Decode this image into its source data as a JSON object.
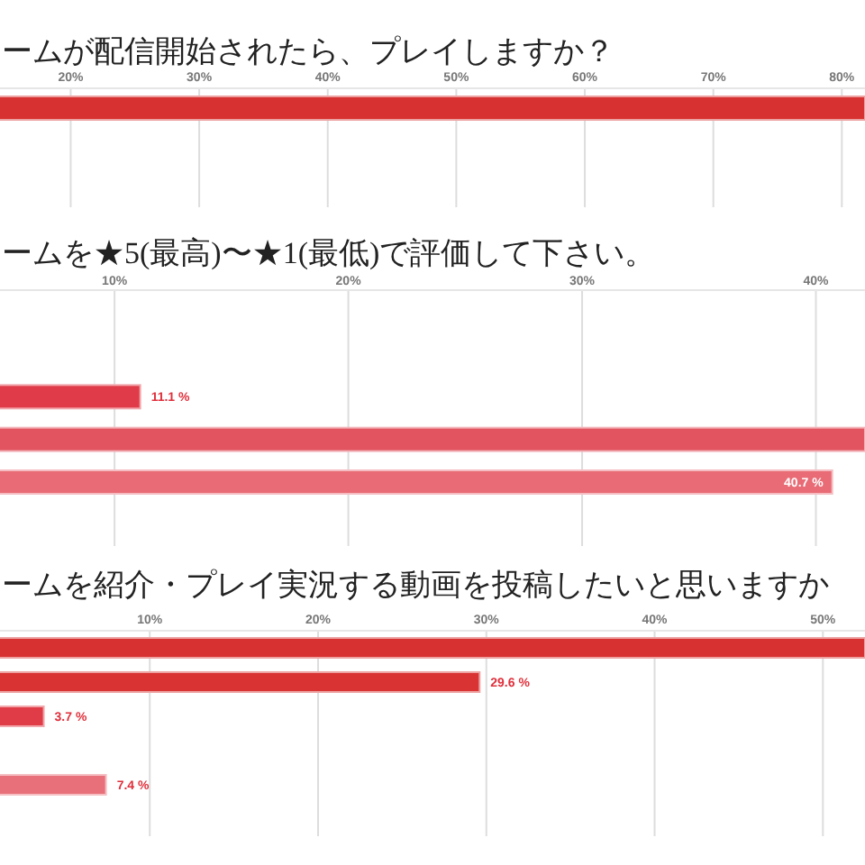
{
  "chart_data": [
    {
      "type": "bar",
      "orientation": "horizontal",
      "title": "ームが配信開始されたら、プレイしますか？",
      "categories": [
        null,
        null,
        null
      ],
      "values": [
        81.8,
        null,
        null
      ],
      "colors": [
        "#d83131",
        null,
        null
      ],
      "xlim": [
        14.5,
        81.8
      ],
      "xticks": [
        {
          "value": 20,
          "label": "20%"
        },
        {
          "value": 30,
          "label": "30%"
        },
        {
          "value": 40,
          "label": "40%"
        },
        {
          "value": 50,
          "label": "50%"
        },
        {
          "value": 60,
          "label": "60%"
        },
        {
          "value": 70,
          "label": "70%"
        },
        {
          "value": 80,
          "label": "80%"
        }
      ],
      "grid": "x",
      "tick_labels": "x"
    },
    {
      "type": "bar",
      "orientation": "horizontal",
      "title": "ームを★5(最高)〜★1(最低)で評価して下さい。",
      "categories": [
        null,
        null,
        null,
        null,
        null,
        null
      ],
      "values": [
        null,
        null,
        11.1,
        42.1,
        40.7,
        null
      ],
      "colors": [
        null,
        null,
        "#e03b48",
        "#e2545f",
        "#e86b75",
        null
      ],
      "xlim": [
        5.1,
        42.1
      ],
      "xticks": [
        {
          "value": 10,
          "label": "10%"
        },
        {
          "value": 20,
          "label": "20%"
        },
        {
          "value": 30,
          "label": "30%"
        },
        {
          "value": 40,
          "label": "40%"
        }
      ],
      "grid": "x",
      "tick_labels": "x",
      "value_labels": [
        null,
        null,
        "11.1 %",
        null,
        "40.7 %",
        null
      ]
    },
    {
      "type": "bar",
      "orientation": "horizontal",
      "title": "ームを紹介・プレイ実況する動画を投稿したいと思いますか",
      "categories": [
        null,
        null,
        null,
        null,
        null,
        null
      ],
      "values": [
        52.5,
        29.6,
        3.7,
        null,
        7.4,
        null
      ],
      "colors": [
        "#d83131",
        "#da3333",
        "#df3c47",
        null,
        "#e8707a",
        null
      ],
      "xlim": [
        1.1,
        52.5
      ],
      "xticks": [
        {
          "value": 10,
          "label": "10%"
        },
        {
          "value": 20,
          "label": "20%"
        },
        {
          "value": 30,
          "label": "30%"
        },
        {
          "value": 40,
          "label": "40%"
        },
        {
          "value": 50,
          "label": "50%"
        }
      ],
      "grid": "x",
      "tick_labels": "x",
      "value_labels": [
        null,
        "29.6 %",
        "3.7 %",
        null,
        "7.4 %",
        null
      ]
    }
  ]
}
